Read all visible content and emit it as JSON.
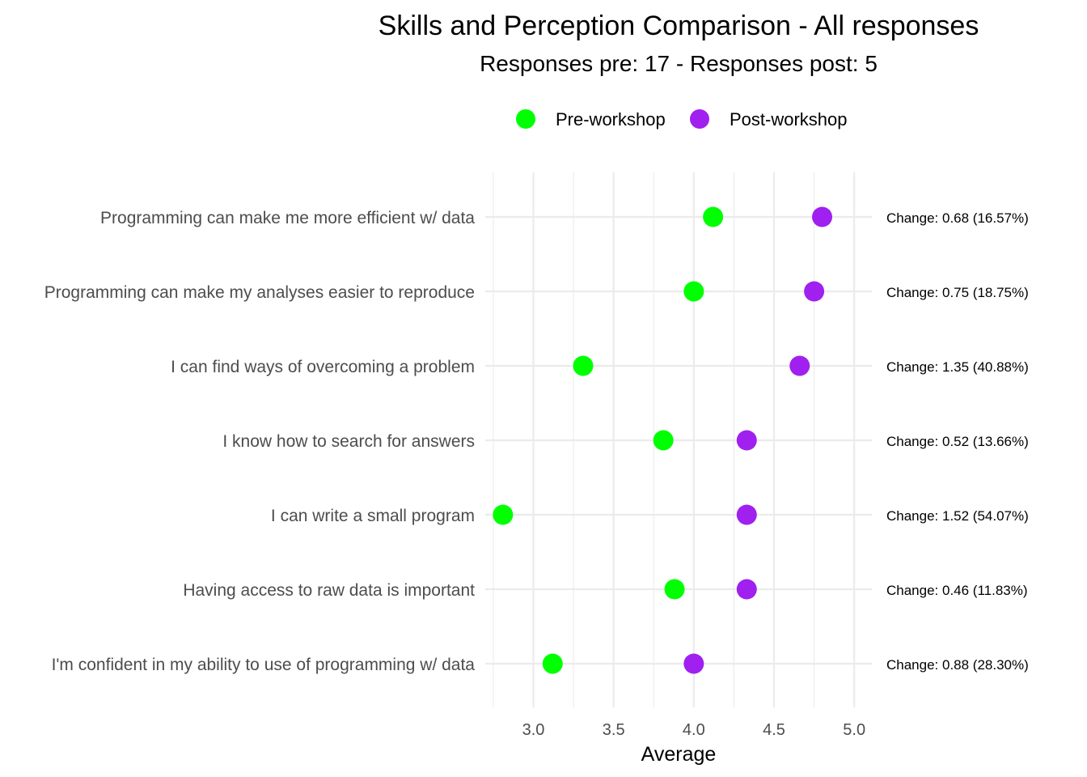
{
  "chart_data": {
    "type": "scatter",
    "subtype": "dumbbell-dot-plot",
    "title": "Skills and Perception Comparison - All responses",
    "subtitle": "Responses pre: 17 - Responses post: 5",
    "xlabel": "Average",
    "ylabel": "",
    "xlim": [
      2.7,
      5.11
    ],
    "x_ticks": [
      3.0,
      3.5,
      4.0,
      4.5,
      5.0
    ],
    "x_tick_labels": [
      "3.0",
      "3.5",
      "4.0",
      "4.5",
      "5.0"
    ],
    "x_minor_ticks": [
      2.75,
      3.25,
      3.75,
      4.25,
      4.75
    ],
    "grid": true,
    "legend": {
      "position": "top",
      "entries": [
        {
          "name": "Pre-workshop",
          "color": "#00ff00"
        },
        {
          "name": "Post-workshop",
          "color": "#a020f0"
        }
      ]
    },
    "categories": [
      "Programming can make me more efficient w/ data",
      "Programming can make my analyses easier to reproduce",
      "I can find ways of overcoming a problem",
      "I know how to search for answers",
      "I can write a small program",
      "Having access to raw data is important",
      "I'm confident in my ability to use of programming w/ data"
    ],
    "series": [
      {
        "name": "Pre-workshop",
        "color": "#00ff00",
        "values": [
          4.12,
          4.0,
          3.31,
          3.81,
          2.81,
          3.88,
          3.12
        ]
      },
      {
        "name": "Post-workshop",
        "color": "#a020f0",
        "values": [
          4.8,
          4.75,
          4.66,
          4.33,
          4.33,
          4.33,
          4.0
        ]
      }
    ],
    "annotations": [
      "Change: 0.68 (16.57%)",
      "Change: 0.75 (18.75%)",
      "Change: 1.35 (40.88%)",
      "Change: 0.52 (13.66%)",
      "Change: 1.52 (54.07%)",
      "Change: 0.46 (11.83%)",
      "Change: 0.88 (28.30%)"
    ]
  }
}
